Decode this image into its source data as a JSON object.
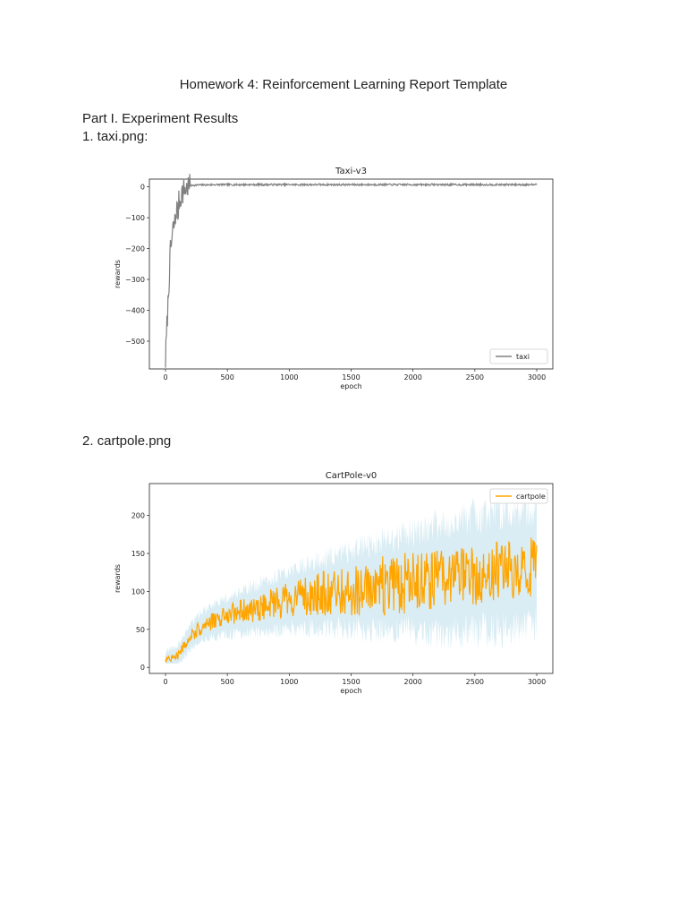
{
  "document": {
    "title": "Homework 4: Reinforcement Learning Report Template",
    "part_heading": "Part I. Experiment Results",
    "items": [
      {
        "label": "1. taxi.png:"
      },
      {
        "label": "2. cartpole.png"
      }
    ]
  },
  "chart_data": [
    {
      "type": "line",
      "title": "Taxi-v3",
      "xlabel": "epoch",
      "ylabel": "rewards",
      "xlim": [
        -130,
        3130
      ],
      "ylim": [
        -590,
        25
      ],
      "x_ticks": [
        0,
        500,
        1000,
        1500,
        2000,
        2500,
        3000
      ],
      "y_ticks": [
        0,
        -100,
        -200,
        -300,
        -400,
        -500
      ],
      "x_tick_labels": [
        "0",
        "500",
        "1000",
        "1500",
        "2000",
        "2500",
        "3000"
      ],
      "y_tick_labels": [
        "0",
        "−100",
        "−200",
        "−300",
        "−400",
        "−500"
      ],
      "grid": false,
      "legend_position": "lower-right",
      "series": [
        {
          "name": "taxi",
          "color": "#808080",
          "x": [
            0,
            10,
            20,
            30,
            40,
            50,
            60,
            70,
            80,
            90,
            100,
            110,
            120,
            130,
            140,
            150,
            160,
            180,
            200,
            220,
            250,
            300,
            400,
            600,
            800,
            1000,
            1500,
            2000,
            2500,
            3000
          ],
          "y": [
            -565,
            -470,
            -380,
            -290,
            -210,
            -180,
            -140,
            -125,
            -110,
            -60,
            -95,
            -40,
            -45,
            -15,
            -20,
            -5,
            -10,
            0,
            3,
            5,
            6,
            6,
            7,
            7,
            7,
            7,
            7,
            7,
            7,
            7
          ]
        }
      ]
    },
    {
      "type": "line",
      "title": "CartPole-v0",
      "xlabel": "epoch",
      "ylabel": "rewards",
      "xlim": [
        -130,
        3130
      ],
      "ylim": [
        -8,
        242
      ],
      "x_ticks": [
        0,
        500,
        1000,
        1500,
        2000,
        2500,
        3000
      ],
      "y_ticks": [
        0,
        50,
        100,
        150,
        200
      ],
      "x_tick_labels": [
        "0",
        "500",
        "1000",
        "1500",
        "2000",
        "2500",
        "3000"
      ],
      "y_tick_labels": [
        "0",
        "50",
        "100",
        "150",
        "200"
      ],
      "grid": false,
      "legend_position": "upper-right",
      "series": [
        {
          "name": "cartpole",
          "color": "#ffa500",
          "band_color": "#add8e6",
          "x": [
            0,
            100,
            200,
            300,
            400,
            500,
            600,
            700,
            800,
            900,
            1000,
            1100,
            1200,
            1300,
            1400,
            1500,
            1600,
            1700,
            1800,
            1900,
            2000,
            2100,
            2200,
            2300,
            2400,
            2500,
            2600,
            2700,
            2800,
            2900,
            3000
          ],
          "y": [
            10,
            15,
            40,
            55,
            62,
            68,
            72,
            76,
            80,
            84,
            88,
            92,
            95,
            98,
            100,
            102,
            104,
            106,
            108,
            110,
            112,
            114,
            116,
            118,
            120,
            122,
            125,
            127,
            128,
            130,
            132
          ]
        }
      ]
    }
  ]
}
